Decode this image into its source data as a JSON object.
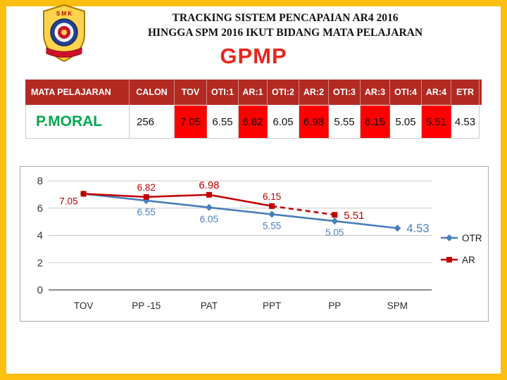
{
  "slide": {
    "title_line1": "TRACKING SISTEM PENCAPAIAN AR4 2016",
    "title_line2": "HINGGA SPM 2016 IKUT BIDANG MATA PELAJARAN",
    "subtitle": "GPMP",
    "logo_banner_text": "S M K"
  },
  "table": {
    "headers": [
      "MATA PELAJARAN",
      "CALON",
      "TOV",
      "OTI:1",
      "AR:1",
      "OTI:2",
      "AR:2",
      "OTI:3",
      "AR:3",
      "OTI:4",
      "AR:4",
      "ETR"
    ],
    "row": {
      "subject": "P.MORAL",
      "calon": "256",
      "values": [
        "7.05",
        "6.55",
        "6.82",
        "6.05",
        "6.98",
        "5.55",
        "6.15",
        "5.05",
        "5.51",
        "4.53"
      ]
    }
  },
  "chart_data": {
    "type": "line",
    "title": "GPMP",
    "categories": [
      "TOV",
      "PP -15",
      "PAT",
      "PPT",
      "PP",
      "SPM"
    ],
    "series": [
      {
        "name": "OTR",
        "color": "#4A7EBB",
        "marker": "diamond",
        "values": [
          7.05,
          6.55,
          6.05,
          5.55,
          5.05,
          4.53
        ]
      },
      {
        "name": "AR",
        "color": "#C00000",
        "marker": "square",
        "values": [
          7.05,
          6.82,
          6.98,
          6.15,
          5.51,
          null
        ],
        "dashed_from": 3
      }
    ],
    "ylim": [
      0,
      8
    ],
    "yticks": [
      0,
      2,
      4,
      6,
      8
    ],
    "grid": true,
    "legend_position": "right"
  },
  "colors": {
    "border_yellow": "#FCBE11",
    "table_header_red": "#B22A22",
    "highlight_cell_red": "#FF0000",
    "subject_green": "#00A94F",
    "subtitle_red": "#E8261D",
    "otr_blue": "#4A7EBB",
    "ar_red": "#C00000"
  }
}
